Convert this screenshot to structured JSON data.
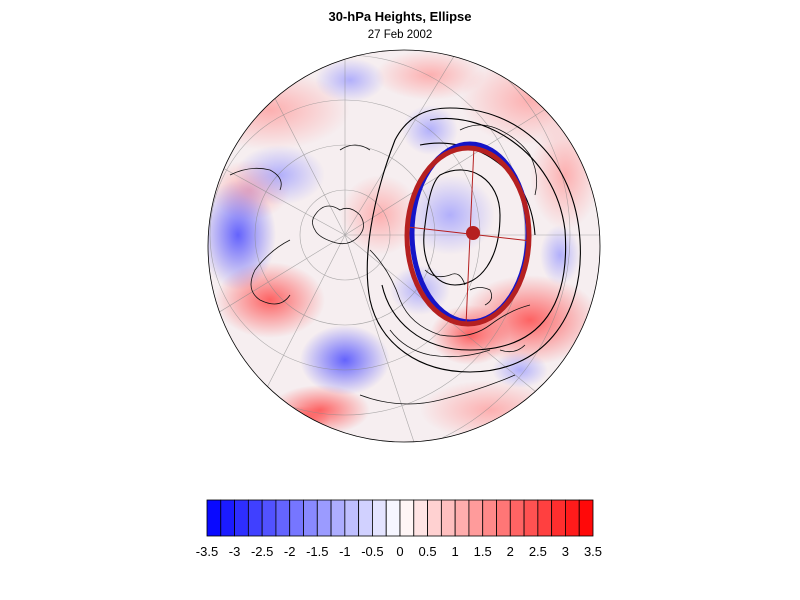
{
  "title": "30-hPa Heights, Ellipse",
  "subtitle": "27 Feb 2002",
  "colors": {
    "negative": "#0000ff",
    "positive": "#ff0000",
    "ellipse_outline_blue": "#1515c8",
    "ellipse_outline_red": "#b52020",
    "centroid": "#b52020"
  },
  "colorbar": {
    "levels": [
      -3.5,
      -3.25,
      -3,
      -2.75,
      -2.5,
      -2.25,
      -2,
      -1.75,
      -1.5,
      -1.25,
      -1,
      -0.75,
      -0.5,
      -0.25,
      0,
      0.25,
      0.5,
      0.75,
      1,
      1.25,
      1.5,
      1.75,
      2,
      2.25,
      2.5,
      2.75,
      3,
      3.25,
      3.5
    ],
    "tick_labels": [
      "-3.5",
      "-3",
      "-2.5",
      "-2",
      "-1.5",
      "-1",
      "-0.5",
      "0",
      "0.5",
      "1",
      "1.5",
      "2",
      "2.5",
      "3",
      "3.5"
    ]
  },
  "map": {
    "projection": "polar-stereographic",
    "hemisphere": "northern",
    "coastlines": true,
    "gridlines": true
  }
}
